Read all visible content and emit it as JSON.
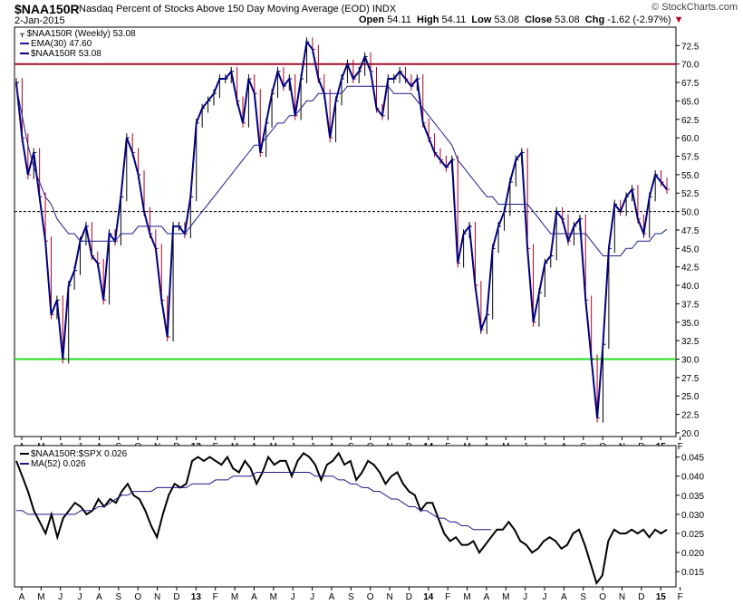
{
  "header": {
    "symbol": "$NAA150R",
    "description": "Nasdaq Percent of Stocks Above 150 Day Moving Average (EOD)",
    "exchange": "INDX",
    "date": "2-Jan-2015",
    "copyright": "© StockCharts.com",
    "open_label": "Open",
    "open": "54.11",
    "high_label": "High",
    "high": "54.11",
    "low_label": "Low",
    "low": "53.08",
    "close_label": "Close",
    "close": "53.08",
    "chg_label": "Chg",
    "chg": "-1.62 (-2.97%)"
  },
  "colors": {
    "price": "#000080",
    "up_bar": "#000000",
    "down_bar": "#b00020",
    "overbought_line": "#a0102a",
    "oversold_line": "#22dd22",
    "ema": "#1a1a8c",
    "ratio": "#000000"
  },
  "chart_data": [
    {
      "type": "line",
      "title": "$NAA150R Nasdaq Percent of Stocks Above 150 Day Moving Average (EOD)",
      "period": "Weekly",
      "ylim": [
        19.5,
        75
      ],
      "y_ticks": [
        "20.0",
        "22.5",
        "25.0",
        "27.5",
        "30.0",
        "32.5",
        "35.0",
        "37.5",
        "40.0",
        "42.5",
        "45.0",
        "47.5",
        "50.0",
        "52.5",
        "55.0",
        "57.5",
        "60.0",
        "62.5",
        "65.0",
        "67.5",
        "70.0",
        "72.5"
      ],
      "x_tick_labels": [
        "A",
        "M",
        "J",
        "J",
        "A",
        "S",
        "O",
        "N",
        "D",
        "13",
        "F",
        "M",
        "A",
        "M",
        "J",
        "J",
        "A",
        "S",
        "O",
        "N",
        "D",
        "14",
        "F",
        "M",
        "A",
        "M",
        "J",
        "J",
        "A",
        "S",
        "O",
        "N",
        "D",
        "15",
        "F"
      ],
      "reference_lines": [
        70,
        50,
        30
      ],
      "legend": [
        {
          "name": "$NAA150R (Weekly) 53.08"
        },
        {
          "name": "EMA(30) 47.60"
        },
        {
          "name": "$NAA150R 53.08"
        }
      ],
      "series": [
        {
          "name": "$NAA150R",
          "values": [
            67.5,
            60,
            55,
            58,
            52,
            46,
            36,
            38,
            30,
            40,
            42,
            46,
            48,
            44,
            43,
            38,
            47,
            46,
            52,
            60,
            58,
            55,
            50,
            47,
            45,
            38,
            33,
            48,
            48,
            47,
            52,
            62,
            64,
            65,
            66,
            68,
            68,
            69,
            65,
            62,
            68,
            66,
            58,
            62,
            66,
            69,
            67,
            68,
            63,
            68,
            73,
            72,
            68,
            66,
            60,
            65,
            68,
            70,
            68,
            69,
            71,
            69,
            64,
            63,
            68,
            68,
            69,
            68,
            67,
            68,
            62,
            60,
            58,
            57,
            56,
            57,
            43,
            47,
            48,
            40,
            34,
            36,
            45,
            48,
            50,
            54,
            57,
            58,
            45,
            35,
            39,
            43,
            44,
            50,
            49,
            46,
            48,
            49,
            38,
            30,
            22,
            32,
            45,
            51,
            50,
            52,
            53,
            49,
            47,
            52,
            55,
            54,
            53
          ]
        },
        {
          "name": "EMA(30)",
          "values": [
            67,
            63,
            59,
            56,
            54,
            52,
            51,
            49,
            48,
            47,
            47,
            46,
            46,
            46,
            46,
            46,
            46,
            46,
            47,
            47,
            47,
            48,
            48,
            48,
            48,
            48,
            47,
            47,
            47,
            47,
            48,
            49,
            50,
            51,
            52,
            53,
            54,
            55,
            56,
            57,
            58,
            59,
            59,
            60,
            61,
            62,
            62,
            63,
            63,
            64,
            65,
            65,
            66,
            66,
            66,
            66,
            66,
            67,
            67,
            67,
            67,
            67,
            67,
            67,
            67,
            66,
            66,
            66,
            66,
            65,
            64,
            63,
            62,
            61,
            60,
            59,
            57,
            56,
            55,
            54,
            53,
            52,
            52,
            51,
            51,
            51,
            51,
            51,
            51,
            50,
            49,
            48,
            47,
            47,
            47,
            47,
            47,
            47,
            47,
            46,
            45,
            44,
            44,
            44,
            44,
            45,
            45,
            46,
            46,
            46,
            47,
            47,
            47.6
          ]
        }
      ]
    },
    {
      "type": "line",
      "title": "$NAA150R:$SPX 0.026",
      "ylim": [
        0.011,
        0.048
      ],
      "y_ticks": [
        "0.015",
        "0.020",
        "0.025",
        "0.030",
        "0.035",
        "0.040",
        "0.045"
      ],
      "x_tick_labels": [
        "A",
        "M",
        "J",
        "J",
        "A",
        "S",
        "O",
        "N",
        "D",
        "13",
        "F",
        "M",
        "A",
        "M",
        "J",
        "J",
        "A",
        "S",
        "O",
        "N",
        "D",
        "14",
        "F",
        "M",
        "A",
        "M",
        "J",
        "J",
        "A",
        "S",
        "O",
        "N",
        "D",
        "15",
        "F"
      ],
      "legend": [
        {
          "name": "$NAA150R:$SPX 0.026"
        },
        {
          "name": "MA(52) 0.026"
        }
      ],
      "series": [
        {
          "name": "$NAA150R:$SPX",
          "values": [
            0.044,
            0.04,
            0.036,
            0.031,
            0.028,
            0.025,
            0.03,
            0.024,
            0.029,
            0.031,
            0.033,
            0.032,
            0.03,
            0.031,
            0.034,
            0.032,
            0.034,
            0.033,
            0.036,
            0.038,
            0.035,
            0.034,
            0.031,
            0.027,
            0.024,
            0.03,
            0.035,
            0.038,
            0.037,
            0.038,
            0.044,
            0.045,
            0.044,
            0.045,
            0.044,
            0.043,
            0.045,
            0.042,
            0.041,
            0.044,
            0.042,
            0.038,
            0.041,
            0.045,
            0.043,
            0.044,
            0.044,
            0.04,
            0.044,
            0.046,
            0.045,
            0.043,
            0.039,
            0.043,
            0.044,
            0.046,
            0.043,
            0.044,
            0.039,
            0.041,
            0.044,
            0.043,
            0.041,
            0.038,
            0.04,
            0.041,
            0.038,
            0.036,
            0.035,
            0.031,
            0.033,
            0.033,
            0.029,
            0.025,
            0.023,
            0.024,
            0.022,
            0.022,
            0.023,
            0.02,
            0.022,
            0.024,
            0.026,
            0.026,
            0.028,
            0.026,
            0.023,
            0.022,
            0.02,
            0.021,
            0.023,
            0.024,
            0.023,
            0.021,
            0.022,
            0.025,
            0.026,
            0.022,
            0.017,
            0.012,
            0.014,
            0.023,
            0.026,
            0.025,
            0.025,
            0.026,
            0.025,
            0.026,
            0.024,
            0.026,
            0.025,
            0.026
          ]
        },
        {
          "name": "MA(52)",
          "values": [
            0.031,
            0.031,
            0.03,
            0.03,
            0.03,
            0.03,
            0.03,
            0.03,
            0.03,
            0.03,
            0.03,
            0.031,
            0.031,
            0.031,
            0.032,
            0.032,
            0.033,
            0.034,
            0.035,
            0.035,
            0.036,
            0.036,
            0.036,
            0.036,
            0.037,
            0.037,
            0.037,
            0.037,
            0.037,
            0.037,
            0.038,
            0.038,
            0.038,
            0.038,
            0.039,
            0.039,
            0.039,
            0.04,
            0.04,
            0.04,
            0.04,
            0.041,
            0.041,
            0.041,
            0.041,
            0.041,
            0.041,
            0.041,
            0.041,
            0.041,
            0.041,
            0.04,
            0.04,
            0.04,
            0.04,
            0.039,
            0.039,
            0.038,
            0.038,
            0.037,
            0.037,
            0.036,
            0.036,
            0.035,
            0.034,
            0.034,
            0.033,
            0.032,
            0.032,
            0.031,
            0.031,
            0.03,
            0.029,
            0.029,
            0.028,
            0.028,
            0.027,
            0.027,
            0.026,
            0.026,
            0.026,
            0.026
          ]
        }
      ]
    }
  ]
}
